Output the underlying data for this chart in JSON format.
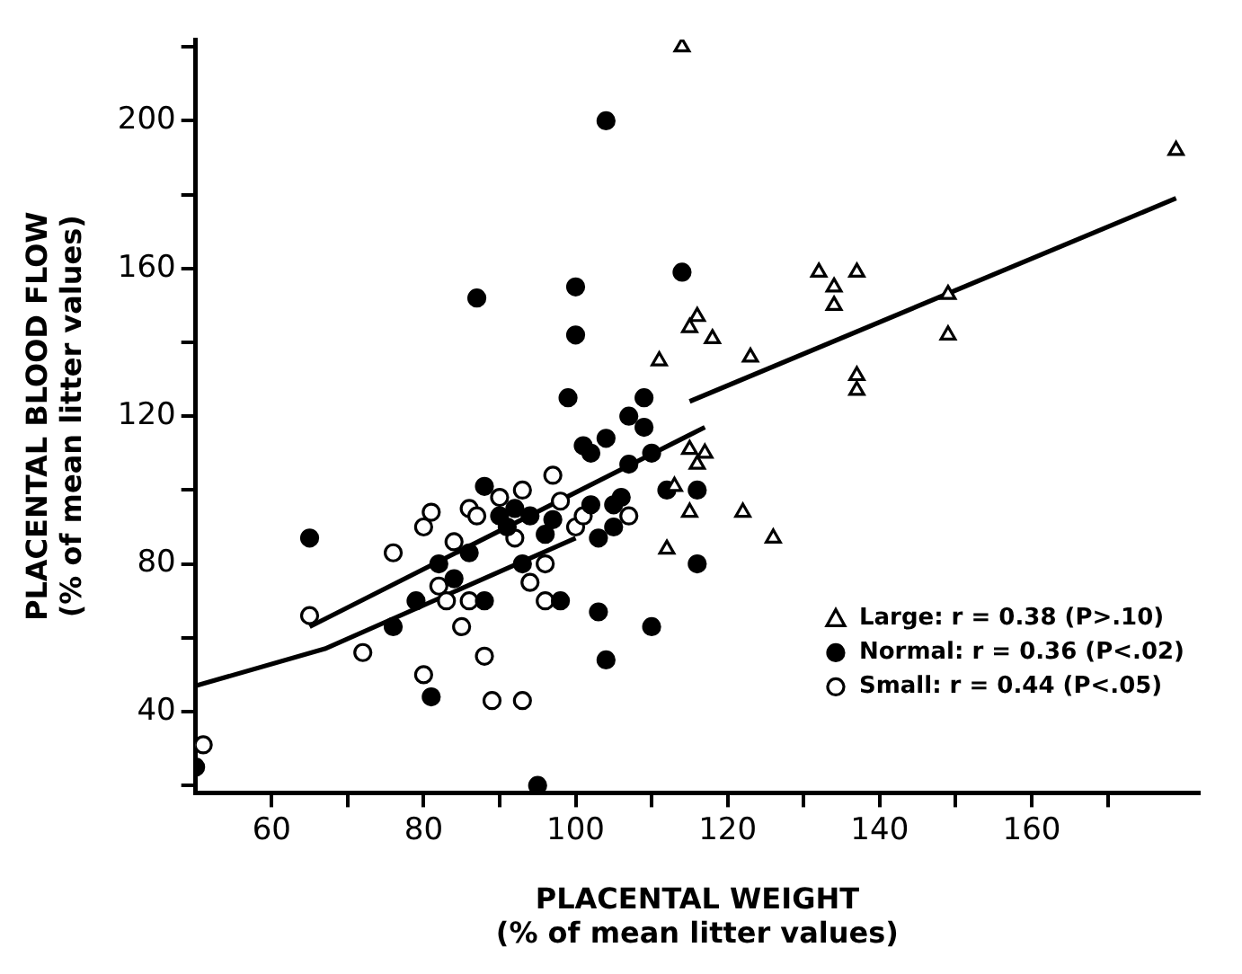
{
  "chart_data": {
    "type": "scatter",
    "xlabel": "PLACENTAL WEIGHT\n(% of mean litter values)",
    "ylabel": "PLACENTAL BLOOD FLOW\n(% of mean litter values)",
    "xlim": [
      50,
      182
    ],
    "xticks": [
      60,
      {
        "value": 70,
        "label": null
      },
      80,
      {
        "value": 90,
        "label": null
      },
      100,
      {
        "value": 110,
        "label": null
      },
      120,
      {
        "value": 130,
        "label": null
      },
      140,
      {
        "value": 150,
        "label": null
      },
      160,
      {
        "value": 170,
        "label": null
      }
    ],
    "ylim": [
      18,
      222
    ],
    "yticks": [
      {
        "value": 20,
        "label": null
      },
      40,
      {
        "value": 60,
        "label": null
      },
      80,
      {
        "value": 100,
        "label": null
      },
      120,
      {
        "value": 140,
        "label": null
      },
      160,
      {
        "value": 180,
        "label": null
      },
      200,
      {
        "value": 220,
        "label": null
      }
    ],
    "grid": false,
    "legend": "bottom right",
    "series": [
      {
        "name": "Large: r = 0.38 (P>.10)",
        "color": "#ffffff",
        "marker": "triangle",
        "x": [
          114,
          179,
          132,
          137,
          134,
          134,
          116,
          115,
          118,
          111,
          123,
          149,
          149,
          137,
          137,
          115,
          117,
          116,
          113,
          115,
          122,
          126,
          112
        ],
        "values": [
          220,
          192,
          159,
          159,
          155,
          150,
          147,
          144,
          141,
          135,
          136,
          153,
          142,
          131,
          127,
          111,
          110,
          107,
          101,
          94,
          94,
          87,
          84
        ]
      },
      {
        "name": "Normal: r = 0.36 (P<.02)",
        "color": "#000000",
        "marker": "circle",
        "x": [
          50,
          65,
          76,
          79,
          81,
          82,
          84,
          86,
          87,
          88,
          88,
          90,
          91,
          92,
          93,
          94,
          95,
          96,
          97,
          98,
          99,
          100,
          100,
          101,
          102,
          102,
          103,
          104,
          104,
          104,
          105,
          106,
          107,
          109,
          109,
          110,
          110,
          112,
          114,
          116,
          116,
          105,
          103,
          107
        ],
        "values": [
          25,
          87,
          63,
          70,
          44,
          80,
          76,
          83,
          152,
          101,
          70,
          93,
          90,
          95,
          80,
          93,
          20,
          88,
          92,
          70,
          125,
          155,
          142,
          112,
          110,
          96,
          87,
          200,
          54,
          114,
          90,
          98,
          107,
          117,
          125,
          110,
          63,
          100,
          159,
          80,
          100,
          96,
          67,
          120
        ]
      },
      {
        "name": "Small: r = 0.44 (P<.05)",
        "color": "#ffffff",
        "marker": "circle",
        "x": [
          51,
          65,
          72,
          76,
          80,
          80,
          81,
          82,
          83,
          84,
          85,
          86,
          86,
          87,
          88,
          89,
          90,
          93,
          93,
          96,
          97,
          98,
          100,
          101,
          107,
          96,
          94,
          92
        ],
        "values": [
          31,
          66,
          56,
          83,
          50,
          90,
          94,
          74,
          70,
          86,
          63,
          95,
          70,
          93,
          55,
          43,
          98,
          100,
          43,
          70,
          104,
          97,
          90,
          93,
          93,
          80,
          75,
          87
        ]
      },
      {
        "type": "line",
        "color": "#000000",
        "marker": "none",
        "x": [
          115,
          179
        ],
        "values": [
          124,
          179
        ]
      },
      {
        "type": "line",
        "color": "#000000",
        "marker": "none",
        "x": [
          65,
          117
        ],
        "values": [
          63,
          117
        ]
      },
      {
        "type": "line",
        "color": "#000000",
        "marker": "none",
        "x": [
          50,
          67,
          100
        ],
        "values": [
          47,
          57,
          87
        ]
      }
    ]
  }
}
